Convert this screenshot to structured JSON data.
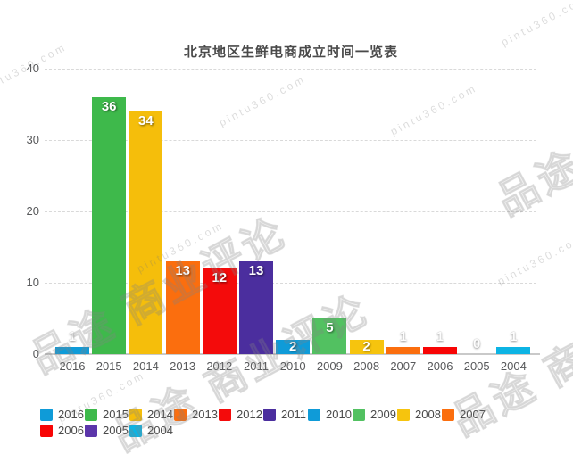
{
  "title": "北京地区生鲜电商成立时间一览表",
  "watermark": {
    "brand_text": "品途 商业评论",
    "url_text": "pintu360.com"
  },
  "chart_data": {
    "type": "bar",
    "title": "北京地区生鲜电商成立时间一览表",
    "categories": [
      "2016",
      "2015",
      "2014",
      "2013",
      "2012",
      "2011",
      "2010",
      "2009",
      "2008",
      "2007",
      "2006",
      "2005",
      "2004"
    ],
    "values": [
      1,
      36,
      34,
      13,
      12,
      13,
      2,
      5,
      2,
      1,
      1,
      0,
      1
    ],
    "colors": [
      "#0f9bd8",
      "#3eb94b",
      "#f5be0b",
      "#fb6e0e",
      "#f40b0b",
      "#4b2e9e",
      "#0f9bd8",
      "#52c161",
      "#f6c40e",
      "#fb6e0e",
      "#f80505",
      "#5b35aa",
      "#0db4e4"
    ],
    "ylim": [
      0,
      40
    ],
    "yticks": [
      0,
      10,
      20,
      30,
      40
    ],
    "grid": "horizontal-dashed",
    "legend_position": "bottom",
    "xlabel": "",
    "ylabel": ""
  },
  "legend": {
    "items": [
      {
        "label": "2016",
        "color": "#0f9bd8"
      },
      {
        "label": "2015",
        "color": "#3eb94b"
      },
      {
        "label": "2014",
        "color": "#f5be0b"
      },
      {
        "label": "2013",
        "color": "#fb6e0e"
      },
      {
        "label": "2012",
        "color": "#f40b0b"
      },
      {
        "label": "2011",
        "color": "#4b2e9e"
      },
      {
        "label": "2010",
        "color": "#0f9bd8"
      },
      {
        "label": "2009",
        "color": "#52c161"
      },
      {
        "label": "2008",
        "color": "#f6c40e"
      },
      {
        "label": "2007",
        "color": "#fb6e0e"
      },
      {
        "label": "2006",
        "color": "#f80505"
      },
      {
        "label": "2005",
        "color": "#5b35aa"
      },
      {
        "label": "2004",
        "color": "#0db4e4"
      }
    ]
  }
}
